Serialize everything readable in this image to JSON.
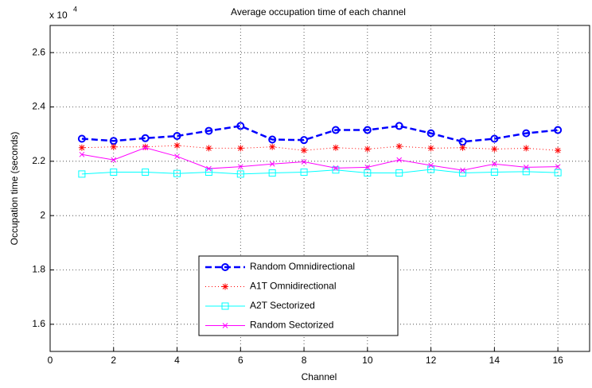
{
  "chart_data": {
    "type": "line",
    "title": "Average occupation time of each channel",
    "x_label": "Channel",
    "y_label": "Occupation time (seconds)",
    "y_multiplier": {
      "base": "x 10",
      "exponent": "4"
    },
    "x": [
      1,
      2,
      3,
      4,
      5,
      6,
      7,
      8,
      9,
      10,
      11,
      12,
      13,
      14,
      15,
      16
    ],
    "series": [
      {
        "name": "Random Omnidirectional",
        "color": "#0000ff",
        "dash": "8 4",
        "width": 2.5,
        "marker": "circle",
        "values": [
          2.283,
          2.275,
          2.285,
          2.293,
          2.312,
          2.33,
          2.28,
          2.278,
          2.315,
          2.315,
          2.33,
          2.303,
          2.272,
          2.283,
          2.303,
          2.315
        ]
      },
      {
        "name": "A1T Omnidirectional",
        "color": "#ff0000",
        "dash": "1 3",
        "width": 1,
        "marker": "star",
        "values": [
          2.25,
          2.253,
          2.253,
          2.258,
          2.248,
          2.248,
          2.253,
          2.24,
          2.25,
          2.245,
          2.255,
          2.248,
          2.25,
          2.245,
          2.248,
          2.24
        ]
      },
      {
        "name": "A2T Sectorized",
        "color": "#00ffff",
        "dash": "none",
        "width": 1,
        "marker": "square",
        "values": [
          2.153,
          2.16,
          2.16,
          2.155,
          2.16,
          2.153,
          2.157,
          2.16,
          2.168,
          2.157,
          2.157,
          2.17,
          2.157,
          2.16,
          2.162,
          2.158
        ]
      },
      {
        "name": "Random Sectorized",
        "color": "#ff00ff",
        "dash": "none",
        "width": 1,
        "marker": "x",
        "values": [
          2.225,
          2.205,
          2.25,
          2.218,
          2.173,
          2.18,
          2.19,
          2.198,
          2.175,
          2.178,
          2.205,
          2.185,
          2.167,
          2.19,
          2.178,
          2.18
        ]
      }
    ],
    "xlim": [
      0,
      17
    ],
    "xticks": [
      0,
      2,
      4,
      6,
      8,
      10,
      12,
      14,
      16
    ],
    "ylim": [
      1.5,
      2.7
    ],
    "yticks": [
      1.6,
      1.8,
      2,
      2.2,
      2.4,
      2.6
    ],
    "grid": true
  }
}
